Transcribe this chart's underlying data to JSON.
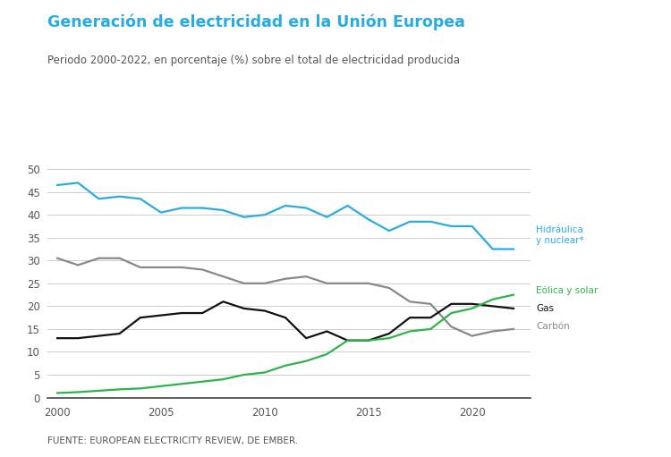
{
  "title": "Generación de electricidad en la Unión Europea",
  "subtitle": "Periodo 2000-2022, en porcentaje (%) sobre el total de electricidad producida",
  "source": "FUENTE: EUROPEAN ELECTRICITY REVIEW, DE EMBER.",
  "title_color": "#29ABE2",
  "subtitle_color": "#555555",
  "source_color": "#555555",
  "years": [
    2000,
    2001,
    2002,
    2003,
    2004,
    2005,
    2006,
    2007,
    2008,
    2009,
    2010,
    2011,
    2012,
    2013,
    2014,
    2015,
    2016,
    2017,
    2018,
    2019,
    2020,
    2021,
    2022
  ],
  "hidraulica_nuclear": [
    46.5,
    47.0,
    43.5,
    44.0,
    43.5,
    40.5,
    41.5,
    41.5,
    41.0,
    39.5,
    40.0,
    42.0,
    41.5,
    39.5,
    42.0,
    39.0,
    36.5,
    38.5,
    38.5,
    37.5,
    37.5,
    32.5,
    32.5
  ],
  "carbon": [
    30.5,
    29.0,
    30.5,
    30.5,
    28.5,
    28.5,
    28.5,
    28.0,
    26.5,
    25.0,
    25.0,
    26.0,
    26.5,
    25.0,
    25.0,
    25.0,
    24.0,
    21.0,
    20.5,
    15.5,
    13.5,
    14.5,
    15.0
  ],
  "gas": [
    13.0,
    13.0,
    13.5,
    14.0,
    17.5,
    18.0,
    18.5,
    18.5,
    21.0,
    19.5,
    19.0,
    17.5,
    13.0,
    14.5,
    12.5,
    12.5,
    14.0,
    17.5,
    17.5,
    20.5,
    20.5,
    20.0,
    19.5
  ],
  "eolica_solar": [
    1.0,
    1.2,
    1.5,
    1.8,
    2.0,
    2.5,
    3.0,
    3.5,
    4.0,
    5.0,
    5.5,
    7.0,
    8.0,
    9.5,
    12.5,
    12.5,
    13.0,
    14.5,
    15.0,
    18.5,
    19.5,
    21.5,
    22.5
  ],
  "color_hidraulica": "#29ABE2",
  "color_carbon": "#888888",
  "color_gas": "#111111",
  "color_eolica": "#2DB34A",
  "ylim": [
    0,
    52
  ],
  "yticks": [
    0,
    5,
    10,
    15,
    20,
    25,
    30,
    35,
    40,
    45,
    50
  ],
  "background_color": "#ffffff",
  "grid_color": "#cccccc",
  "label_hidraulica": "Hidráulica\ny nuclear*",
  "label_eolica": "Eólica y solar",
  "label_gas": "Gas",
  "label_carbon": "Carbón"
}
